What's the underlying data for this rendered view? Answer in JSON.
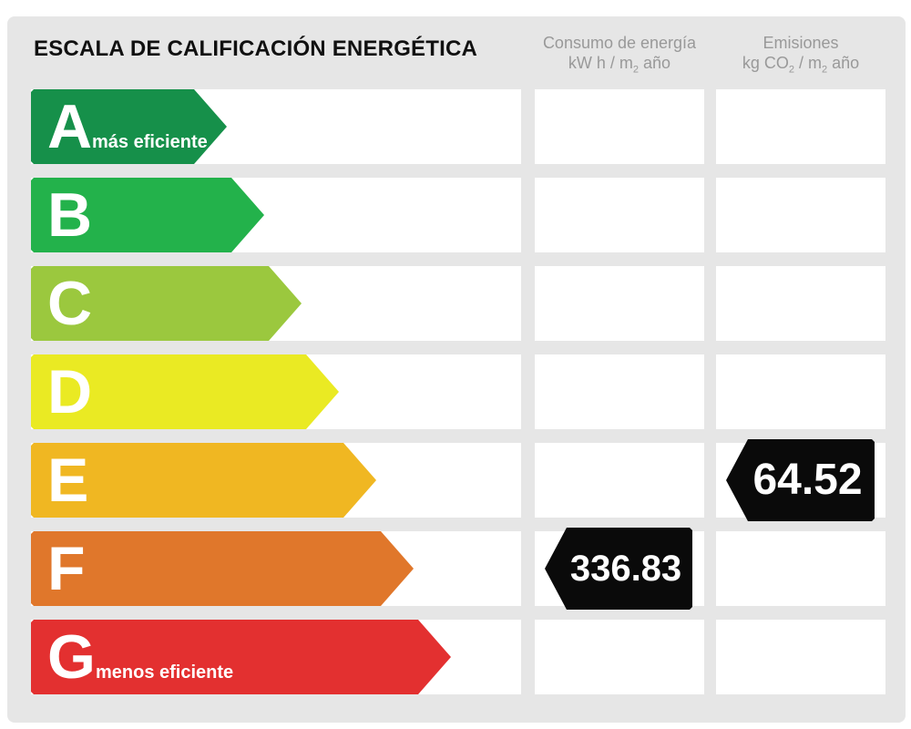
{
  "header": {
    "title": "ESCALA DE CALIFICACIÓN ENERGÉTICA",
    "consumption": {
      "line1": "Consumo de energía",
      "unit_a": "kW h / m",
      "unit_sub": "2",
      "unit_b": " año"
    },
    "emissions": {
      "line1": "Emisiones",
      "unit_a": "kg CO",
      "unit_sub1": "2",
      "unit_mid": " / m",
      "unit_sub2": "2",
      "unit_b": " año"
    }
  },
  "colors": {
    "A": "#16904a",
    "B": "#23b24b",
    "C": "#9bc83e",
    "D": "#eaea23",
    "E": "#f0b722",
    "F": "#e0772b",
    "G": "#e33030",
    "badge": "#0a0a0a"
  },
  "chart_data": {
    "type": "table",
    "ratings": [
      {
        "letter": "A",
        "label": "más eficiente"
      },
      {
        "letter": "B",
        "label": ""
      },
      {
        "letter": "C",
        "label": ""
      },
      {
        "letter": "D",
        "label": ""
      },
      {
        "letter": "E",
        "label": ""
      },
      {
        "letter": "F",
        "label": ""
      },
      {
        "letter": "G",
        "label": "menos eficiente"
      }
    ],
    "consumption": {
      "rating": "F",
      "value": "336.83"
    },
    "emissions": {
      "rating": "E",
      "value": "64.52"
    }
  }
}
